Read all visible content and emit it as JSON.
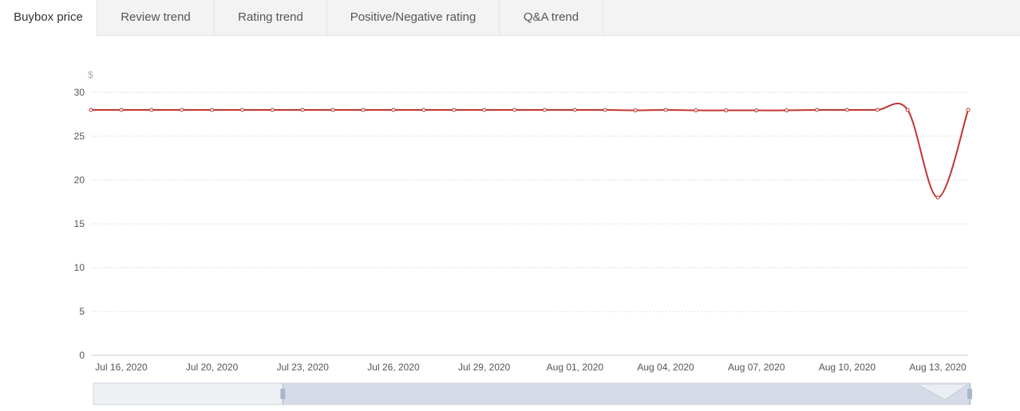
{
  "tabs": [
    {
      "label": "Buybox price",
      "active": true
    },
    {
      "label": "Review trend",
      "active": false
    },
    {
      "label": "Rating trend",
      "active": false
    },
    {
      "label": "Positive/Negative rating",
      "active": false
    },
    {
      "label": "Q&A trend",
      "active": false
    }
  ],
  "colors": {
    "line": "#c23531",
    "grid": "#dddddd",
    "zoom_fill": "#d2d9e5",
    "zoom_handle": "#a7b7cc"
  },
  "chart_data": {
    "type": "line",
    "y_unit": "$",
    "ylim": [
      0,
      30
    ],
    "yticks": [
      0,
      5,
      10,
      15,
      20,
      25,
      30
    ],
    "grid": true,
    "x_tick_labels": [
      "Jul 16, 2020",
      "Jul 20, 2020",
      "Jul 23, 2020",
      "Jul 26, 2020",
      "Jul 29, 2020",
      "Aug 01, 2020",
      "Aug 04, 2020",
      "Aug 07, 2020",
      "Aug 10, 2020",
      "Aug 13, 2020"
    ],
    "series": [
      {
        "values": [
          28,
          28,
          28,
          28,
          28,
          28,
          28,
          28,
          28,
          28,
          28,
          28,
          28,
          28,
          28,
          28,
          28,
          28,
          27.95,
          28,
          27.95,
          27.95,
          27.95,
          27.95,
          28,
          28,
          28,
          28,
          18,
          28
        ]
      }
    ],
    "zoom_range": [
      0.216,
      1.0
    ]
  }
}
